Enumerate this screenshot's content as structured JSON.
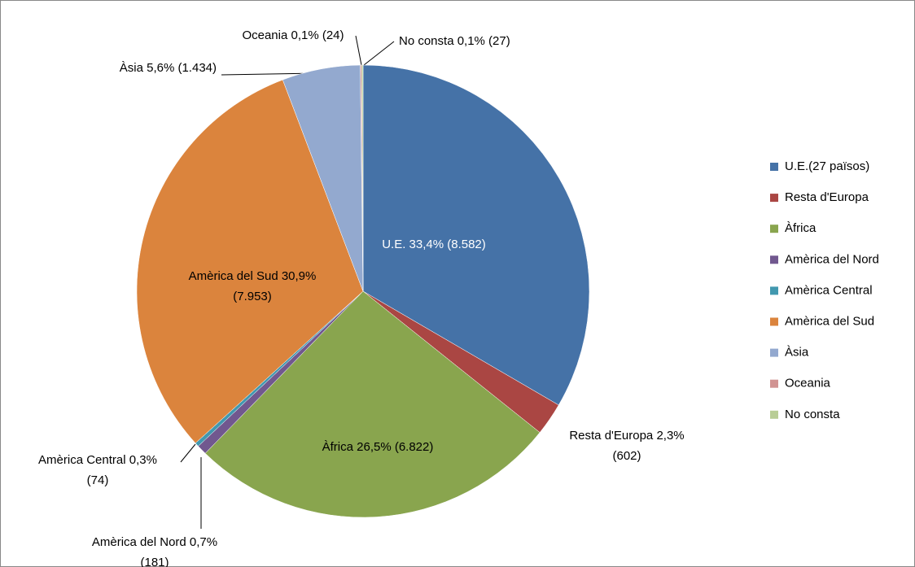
{
  "chart_data": {
    "type": "pie",
    "categories": [
      "U.E.(27 països)",
      "Resta d'Europa",
      "Àfrica",
      "Amèrica del Nord",
      "Amèrica Central",
      "Amèrica del Sud",
      "Àsia",
      "Oceania",
      "No consta"
    ],
    "values": [
      8582,
      602,
      6822,
      181,
      74,
      7953,
      1434,
      24,
      27
    ],
    "value_labels": [
      [
        "U.E. 33,4% (8.582)"
      ],
      [
        "Resta d'Europa 2,3%",
        "(602)"
      ],
      [
        "Àfrica 26,5% (6.822)"
      ],
      [
        "Amèrica del Nord 0,7%",
        "(181)"
      ],
      [
        "Amèrica Central 0,3%",
        "(74)"
      ],
      [
        "Amèrica del Sud 30,9%",
        "(7.953)"
      ],
      [
        "Àsia 5,6% (1.434)"
      ],
      [
        "Oceania 0,1% (24)"
      ],
      [
        "No consta 0,1% (27)"
      ]
    ],
    "colors": [
      "#4572a7",
      "#aa4643",
      "#89a54e",
      "#71588f",
      "#4198af",
      "#db843d",
      "#93a9cf",
      "#d19392",
      "#b9cd96"
    ],
    "legend": "right"
  }
}
